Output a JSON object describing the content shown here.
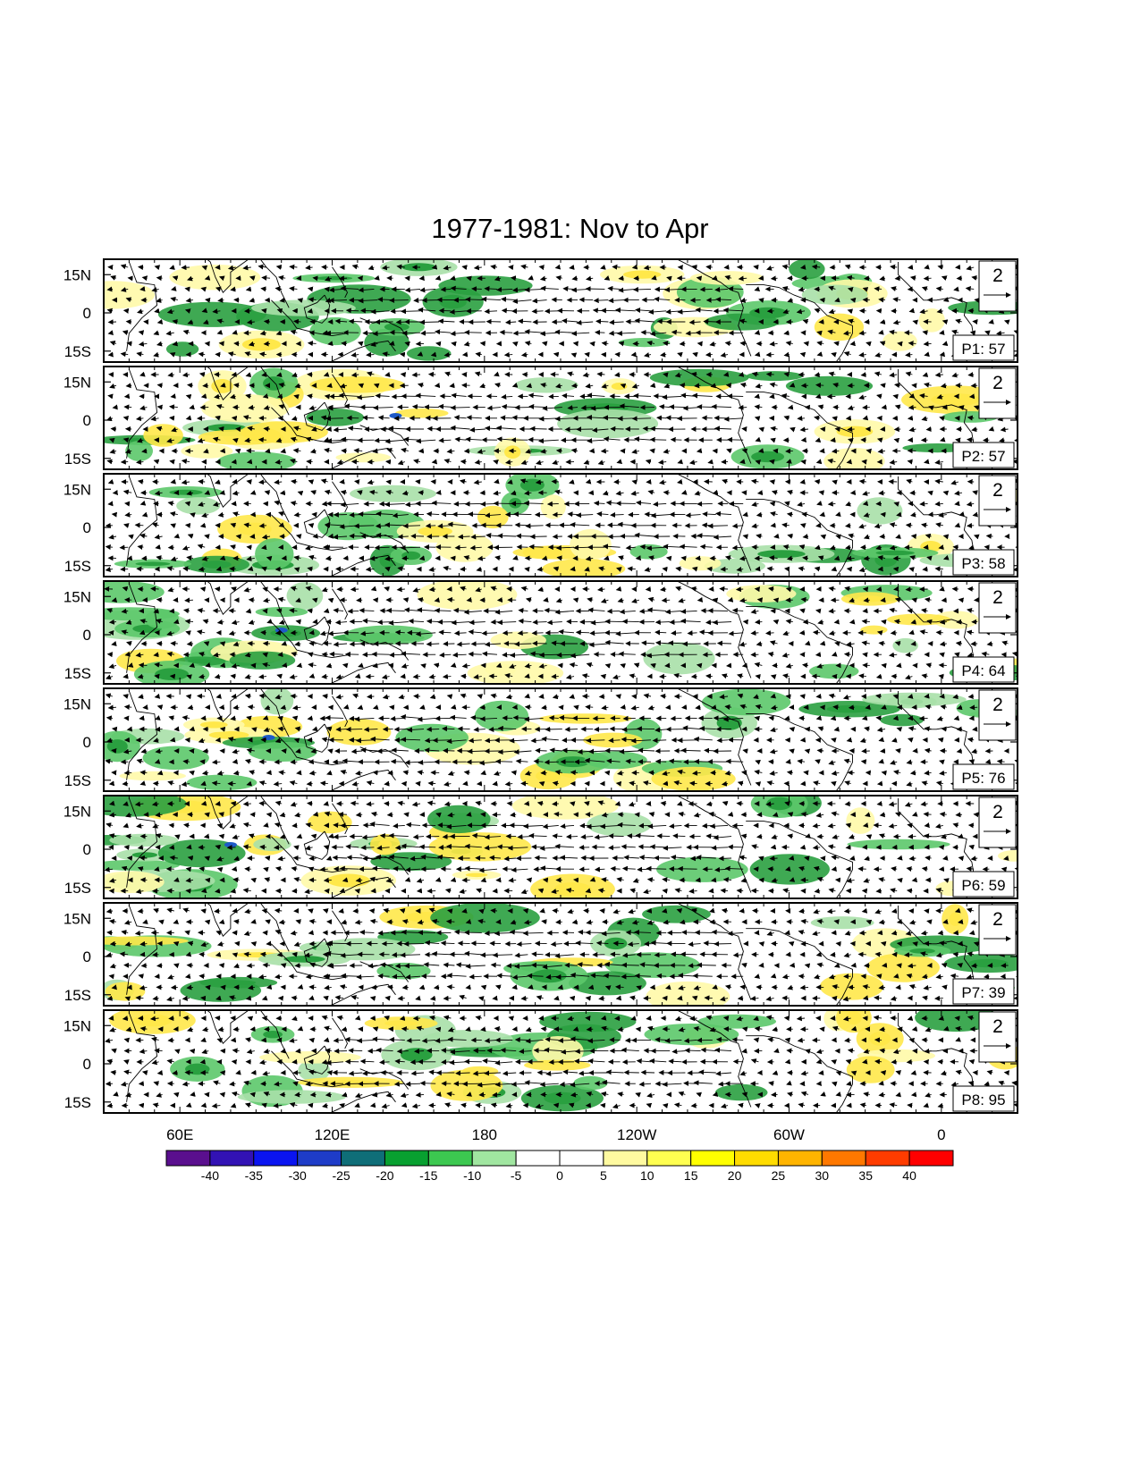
{
  "title": "1977-1981: Nov to Apr",
  "lat_tick_labels": [
    "15N",
    "0",
    "15S"
  ],
  "lon_tick_labels": [
    "60E",
    "120E",
    "180",
    "120W",
    "60W",
    "0"
  ],
  "reference_vector_label": "2",
  "panels": [
    {
      "label": "P1: 57"
    },
    {
      "label": "P2: 57"
    },
    {
      "label": "P3: 58"
    },
    {
      "label": "P4: 64"
    },
    {
      "label": "P5: 76"
    },
    {
      "label": "P6: 59"
    },
    {
      "label": "P7: 39"
    },
    {
      "label": "P8: 95"
    }
  ],
  "colorbar": {
    "tick_labels": [
      "-40",
      "-35",
      "-30",
      "-25",
      "-20",
      "-15",
      "-10",
      "-5",
      "0",
      "5",
      "10",
      "15",
      "20",
      "25",
      "30",
      "35",
      "40"
    ],
    "colors": [
      "#5a0f8e",
      "#3212b4",
      "#0a14f0",
      "#1e3cc8",
      "#0f6e78",
      "#08a030",
      "#3cc850",
      "#a0e6a0",
      "#ffffff",
      "#ffffff",
      "#fffaa0",
      "#ffff50",
      "#ffff00",
      "#ffdc00",
      "#ffb400",
      "#ff7800",
      "#ff3c00",
      "#ff0000"
    ]
  },
  "shading_colors": {
    "wet_light": "#a8e0a8",
    "wet": "#5cc86a",
    "wet_strong": "#2aa040",
    "wet_extreme": "#1e5ac8",
    "dry_light": "#fffaa8",
    "dry": "#ffe84a"
  }
}
